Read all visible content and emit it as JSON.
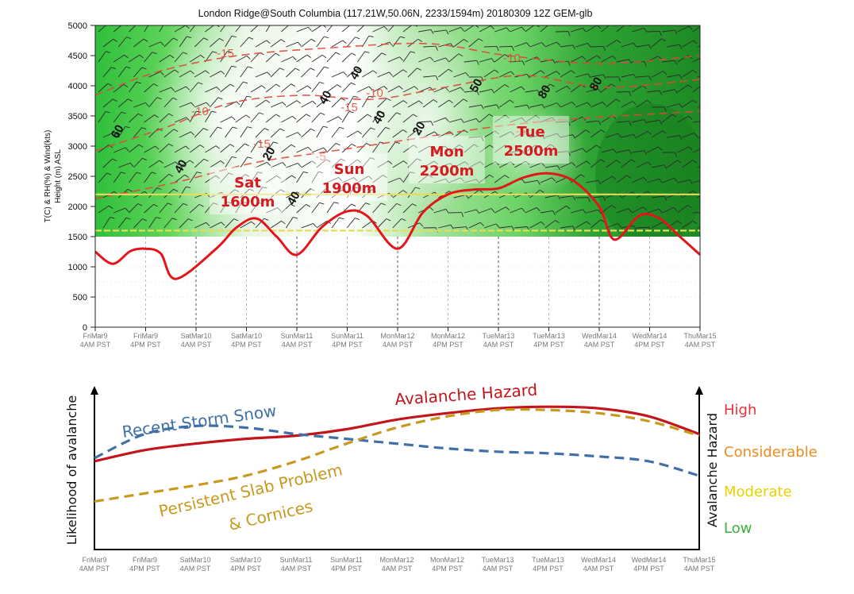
{
  "chart_data": [
    {
      "type": "heatmap",
      "title": "London Ridge@South Columbia (117.21W,50.06N, 2233/1594m)  20180309  12Z  GEM-glb",
      "ylabel_lines": [
        "T(C) & RH(%) & Wind(kts)",
        "Height (m) ASL"
      ],
      "ylim": [
        0,
        5000
      ],
      "yticks": [
        0,
        500,
        1000,
        1500,
        2000,
        2500,
        3000,
        3500,
        4000,
        4500,
        5000
      ],
      "ground_level": 1500,
      "xtick_labels": [
        [
          "FriMar9",
          "4AM PST"
        ],
        [
          "FriMar9",
          "4PM PST"
        ],
        [
          "SatMar10",
          "4AM PST"
        ],
        [
          "SatMar10",
          "4PM PST"
        ],
        [
          "SunMar11",
          "4AM PST"
        ],
        [
          "SunMar11",
          "4PM PST"
        ],
        [
          "MonMar12",
          "4AM PST"
        ],
        [
          "MonMar12",
          "4PM PST"
        ],
        [
          "TueMar13",
          "4AM PST"
        ],
        [
          "TueMar13",
          "4PM PST"
        ],
        [
          "WedMar14",
          "4AM PST"
        ],
        [
          "WedMar14",
          "4PM PST"
        ],
        [
          "ThuMar15",
          "4AM PST"
        ]
      ],
      "reference_lines": [
        1600,
        2200
      ],
      "freezing_level": [
        [
          0,
          1250
        ],
        [
          0.35,
          1050
        ],
        [
          0.7,
          1260
        ],
        [
          1,
          1300
        ],
        [
          1.3,
          1220
        ],
        [
          1.6,
          800
        ],
        [
          2.4,
          1300
        ],
        [
          2.8,
          1650
        ],
        [
          3.2,
          1800
        ],
        [
          3.6,
          1500
        ],
        [
          4,
          1200
        ],
        [
          4.5,
          1660
        ],
        [
          5,
          1920
        ],
        [
          5.4,
          1840
        ],
        [
          6,
          1300
        ],
        [
          6.5,
          1900
        ],
        [
          7,
          2200
        ],
        [
          7.5,
          2280
        ],
        [
          8,
          2300
        ],
        [
          8.5,
          2480
        ],
        [
          9,
          2550
        ],
        [
          9.5,
          2420
        ],
        [
          10,
          2000
        ],
        [
          10.3,
          1450
        ],
        [
          10.8,
          1850
        ],
        [
          11.2,
          1800
        ],
        [
          11.6,
          1500
        ],
        [
          12,
          1200
        ]
      ],
      "rh_contour_labels": [
        "60",
        "40",
        "20",
        "40",
        "40",
        "40",
        "20",
        "50",
        "80",
        "80",
        "40"
      ],
      "temp_contour_labels": [
        "-15",
        "-10",
        "-10",
        "-15",
        "-5",
        "-10",
        "-15",
        "-5"
      ],
      "annotations": [
        {
          "day": "Sat",
          "height": "1600m"
        },
        {
          "day": "Sun",
          "height": "1900m"
        },
        {
          "day": "Mon",
          "height": "2200m"
        },
        {
          "day": "Tue",
          "height": "2500m"
        }
      ]
    },
    {
      "type": "line",
      "ylabel": "Likelihood of avalanche",
      "y2label": "Avalanche Hazard",
      "hazard_levels": [
        {
          "label": "High",
          "color": "#e8333b"
        },
        {
          "label": "Considerable",
          "color": "#ee8b1e"
        },
        {
          "label": "Moderate",
          "color": "#e6d200"
        },
        {
          "label": "Low",
          "color": "#3bb23b"
        }
      ],
      "xtick_labels": [
        [
          "FriMar9",
          "4AM PST"
        ],
        [
          "FriMar9",
          "4PM PST"
        ],
        [
          "SatMar10",
          "4AM PST"
        ],
        [
          "SatMar10",
          "4PM PST"
        ],
        [
          "SunMar11",
          "4AM PST"
        ],
        [
          "SunMar11",
          "4PM PST"
        ],
        [
          "MonMar12",
          "4AM PST"
        ],
        [
          "MonMar12",
          "4PM PST"
        ],
        [
          "TueMar13",
          "4AM PST"
        ],
        [
          "TueMar13",
          "4PM PST"
        ],
        [
          "WedMar14",
          "4AM PST"
        ],
        [
          "WedMar14",
          "4PM PST"
        ],
        [
          "ThuMar15",
          "4AM PST"
        ]
      ],
      "series": [
        {
          "name": "Avalanche Hazard",
          "color": "#c3161c",
          "style": "solid",
          "x": [
            0,
            1,
            2,
            3,
            4,
            5,
            6,
            7,
            8,
            9,
            10,
            11,
            12
          ],
          "values": [
            0.55,
            0.62,
            0.66,
            0.69,
            0.71,
            0.75,
            0.81,
            0.85,
            0.88,
            0.89,
            0.88,
            0.83,
            0.72
          ]
        },
        {
          "name": "Recent Storm Snow",
          "color": "#3f70a8",
          "style": "dashed",
          "x": [
            0,
            1,
            2,
            3,
            4,
            5,
            6,
            7,
            8,
            9,
            10,
            11,
            12
          ],
          "values": [
            0.57,
            0.72,
            0.77,
            0.76,
            0.72,
            0.69,
            0.66,
            0.63,
            0.61,
            0.6,
            0.58,
            0.55,
            0.46
          ]
        },
        {
          "name": "Persistent Slab Problem & Cornices",
          "color": "#c8991f",
          "style": "dashed",
          "x": [
            0,
            1,
            2,
            3,
            4,
            5,
            6,
            7,
            8,
            9,
            10,
            11,
            12
          ],
          "values": [
            0.3,
            0.35,
            0.4,
            0.46,
            0.55,
            0.66,
            0.76,
            0.83,
            0.87,
            0.87,
            0.85,
            0.8,
            0.71
          ]
        }
      ]
    }
  ]
}
